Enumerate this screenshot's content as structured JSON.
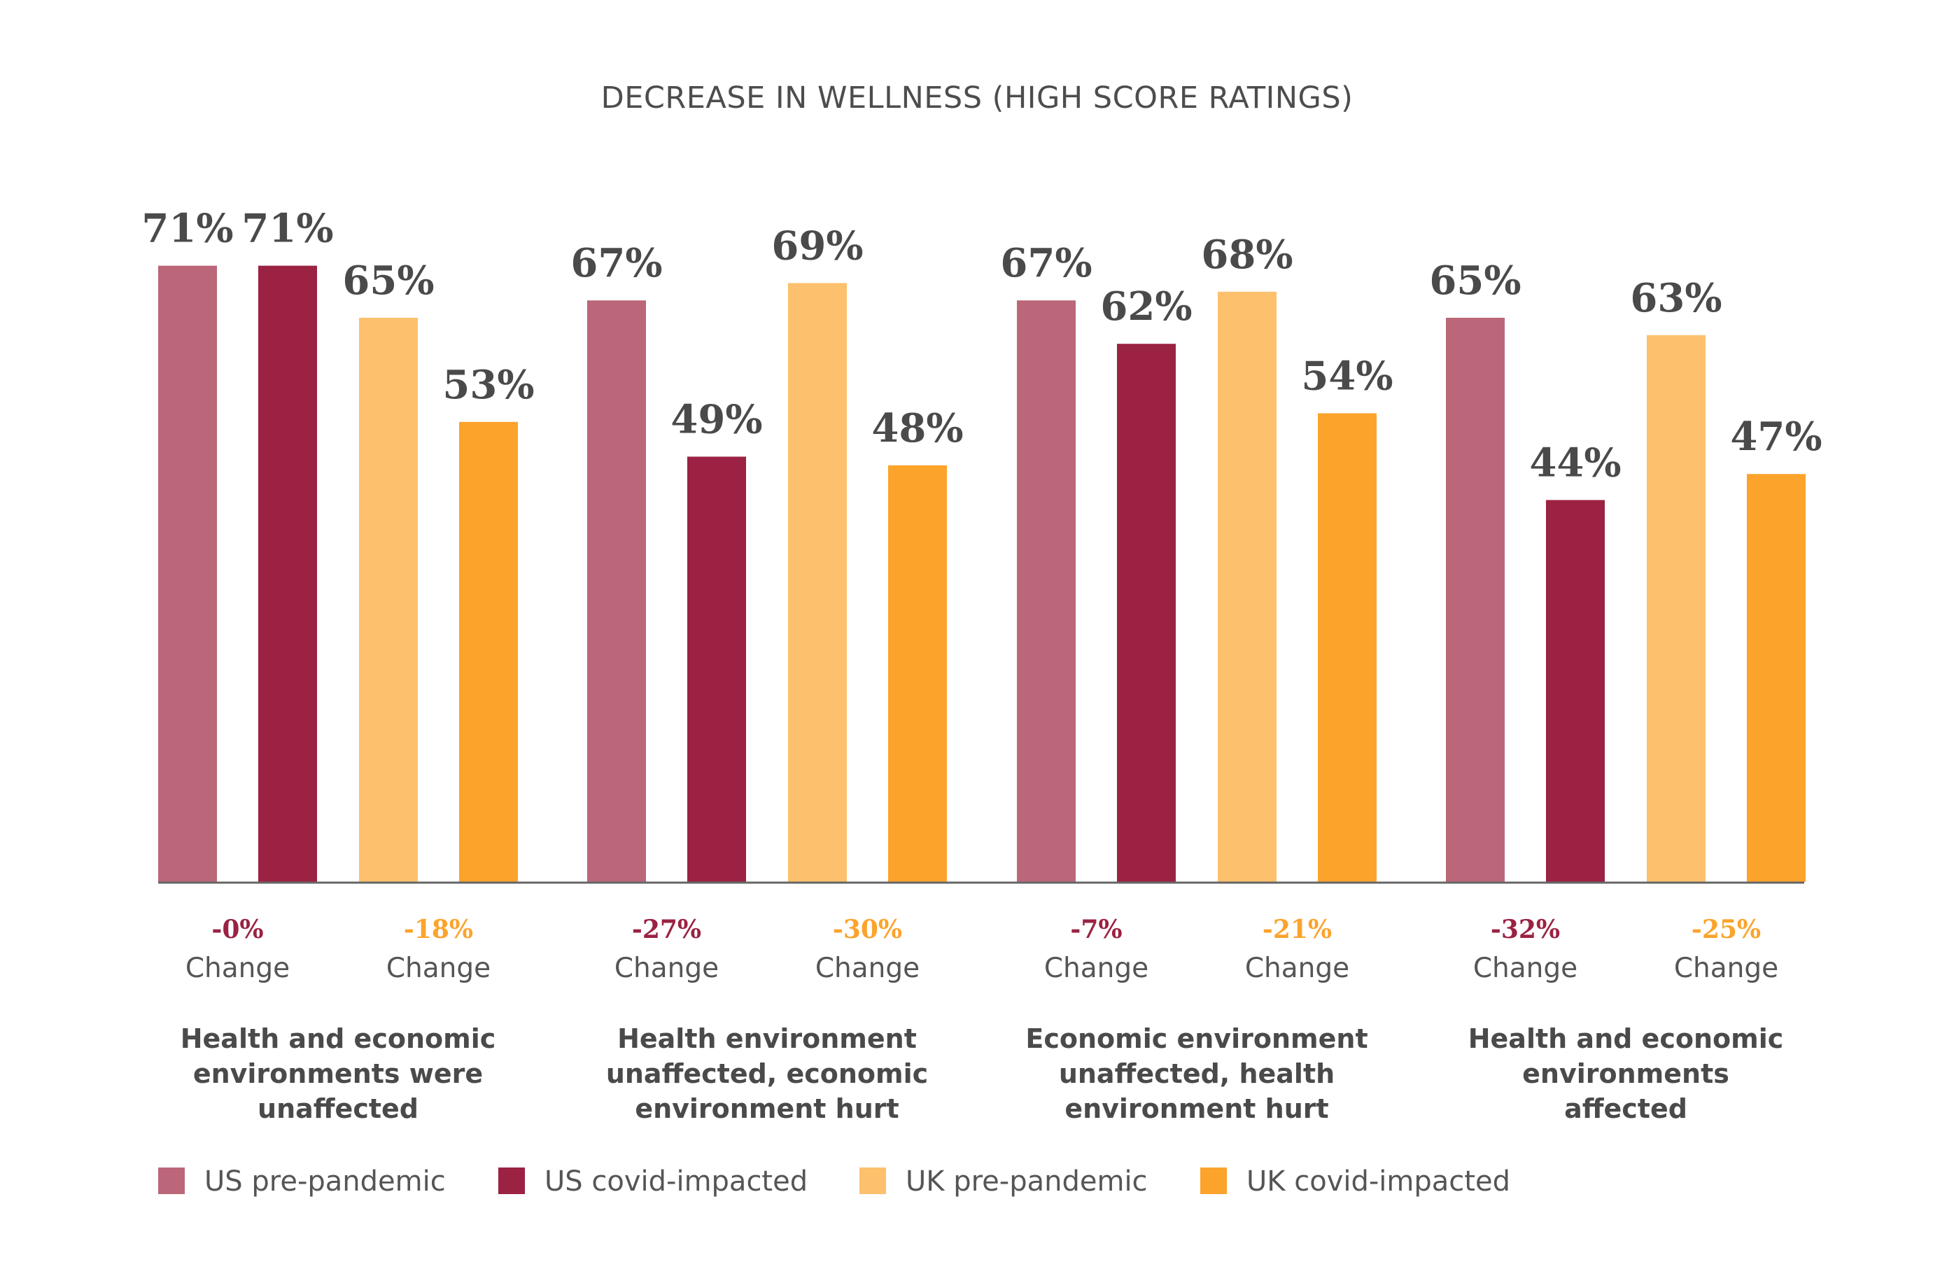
{
  "chart_data": {
    "type": "bar",
    "title": "DECREASE IN WELLNESS (HIGH SCORE RATINGS)",
    "xlabel": "",
    "ylabel": "",
    "ylim": [
      0,
      100
    ],
    "grid": false,
    "legend_position": "bottom-left",
    "categories": [
      "Health and economic environments were unaffected",
      "Health environment unaffected, economic environment hurt",
      "Economic environment unaffected, health environment hurt",
      "Health and economic environments affected"
    ],
    "category_lines": [
      [
        "Health and economic",
        "environments were",
        "unaffected"
      ],
      [
        "Health environment",
        "unaffected, economic",
        "environment hurt"
      ],
      [
        "Economic environment",
        "unaffected, health",
        "environment hurt"
      ],
      [
        "Health and economic",
        "environments",
        "affected"
      ]
    ],
    "series": [
      {
        "name": "US pre-pandemic",
        "color": "#bb6679",
        "values": [
          71,
          67,
          67,
          65
        ],
        "labels": [
          "71%",
          "67%",
          "67%",
          "65%"
        ]
      },
      {
        "name": "US covid-impacted",
        "color": "#9b2242",
        "values": [
          71,
          49,
          62,
          44
        ],
        "labels": [
          "71%",
          "49%",
          "62%",
          "44%"
        ]
      },
      {
        "name": "UK pre-pandemic",
        "color": "#fdc06d",
        "values": [
          65,
          69,
          68,
          63
        ],
        "labels": [
          "65%",
          "69%",
          "68%",
          "63%"
        ]
      },
      {
        "name": "UK covid-impacted",
        "color": "#fca32c",
        "values": [
          53,
          48,
          54,
          47
        ],
        "labels": [
          "53%",
          "48%",
          "54%",
          "47%"
        ]
      }
    ],
    "changes": [
      {
        "us": "-0%",
        "uk": "-18%"
      },
      {
        "us": "-27%",
        "uk": "-30%"
      },
      {
        "us": "-7%",
        "uk": "-21%"
      },
      {
        "us": "-32%",
        "uk": "-25%"
      }
    ],
    "change_word": "Change",
    "change_colors": {
      "us": "#9b2242",
      "uk": "#fca32c"
    },
    "axis_color": "#666666"
  }
}
